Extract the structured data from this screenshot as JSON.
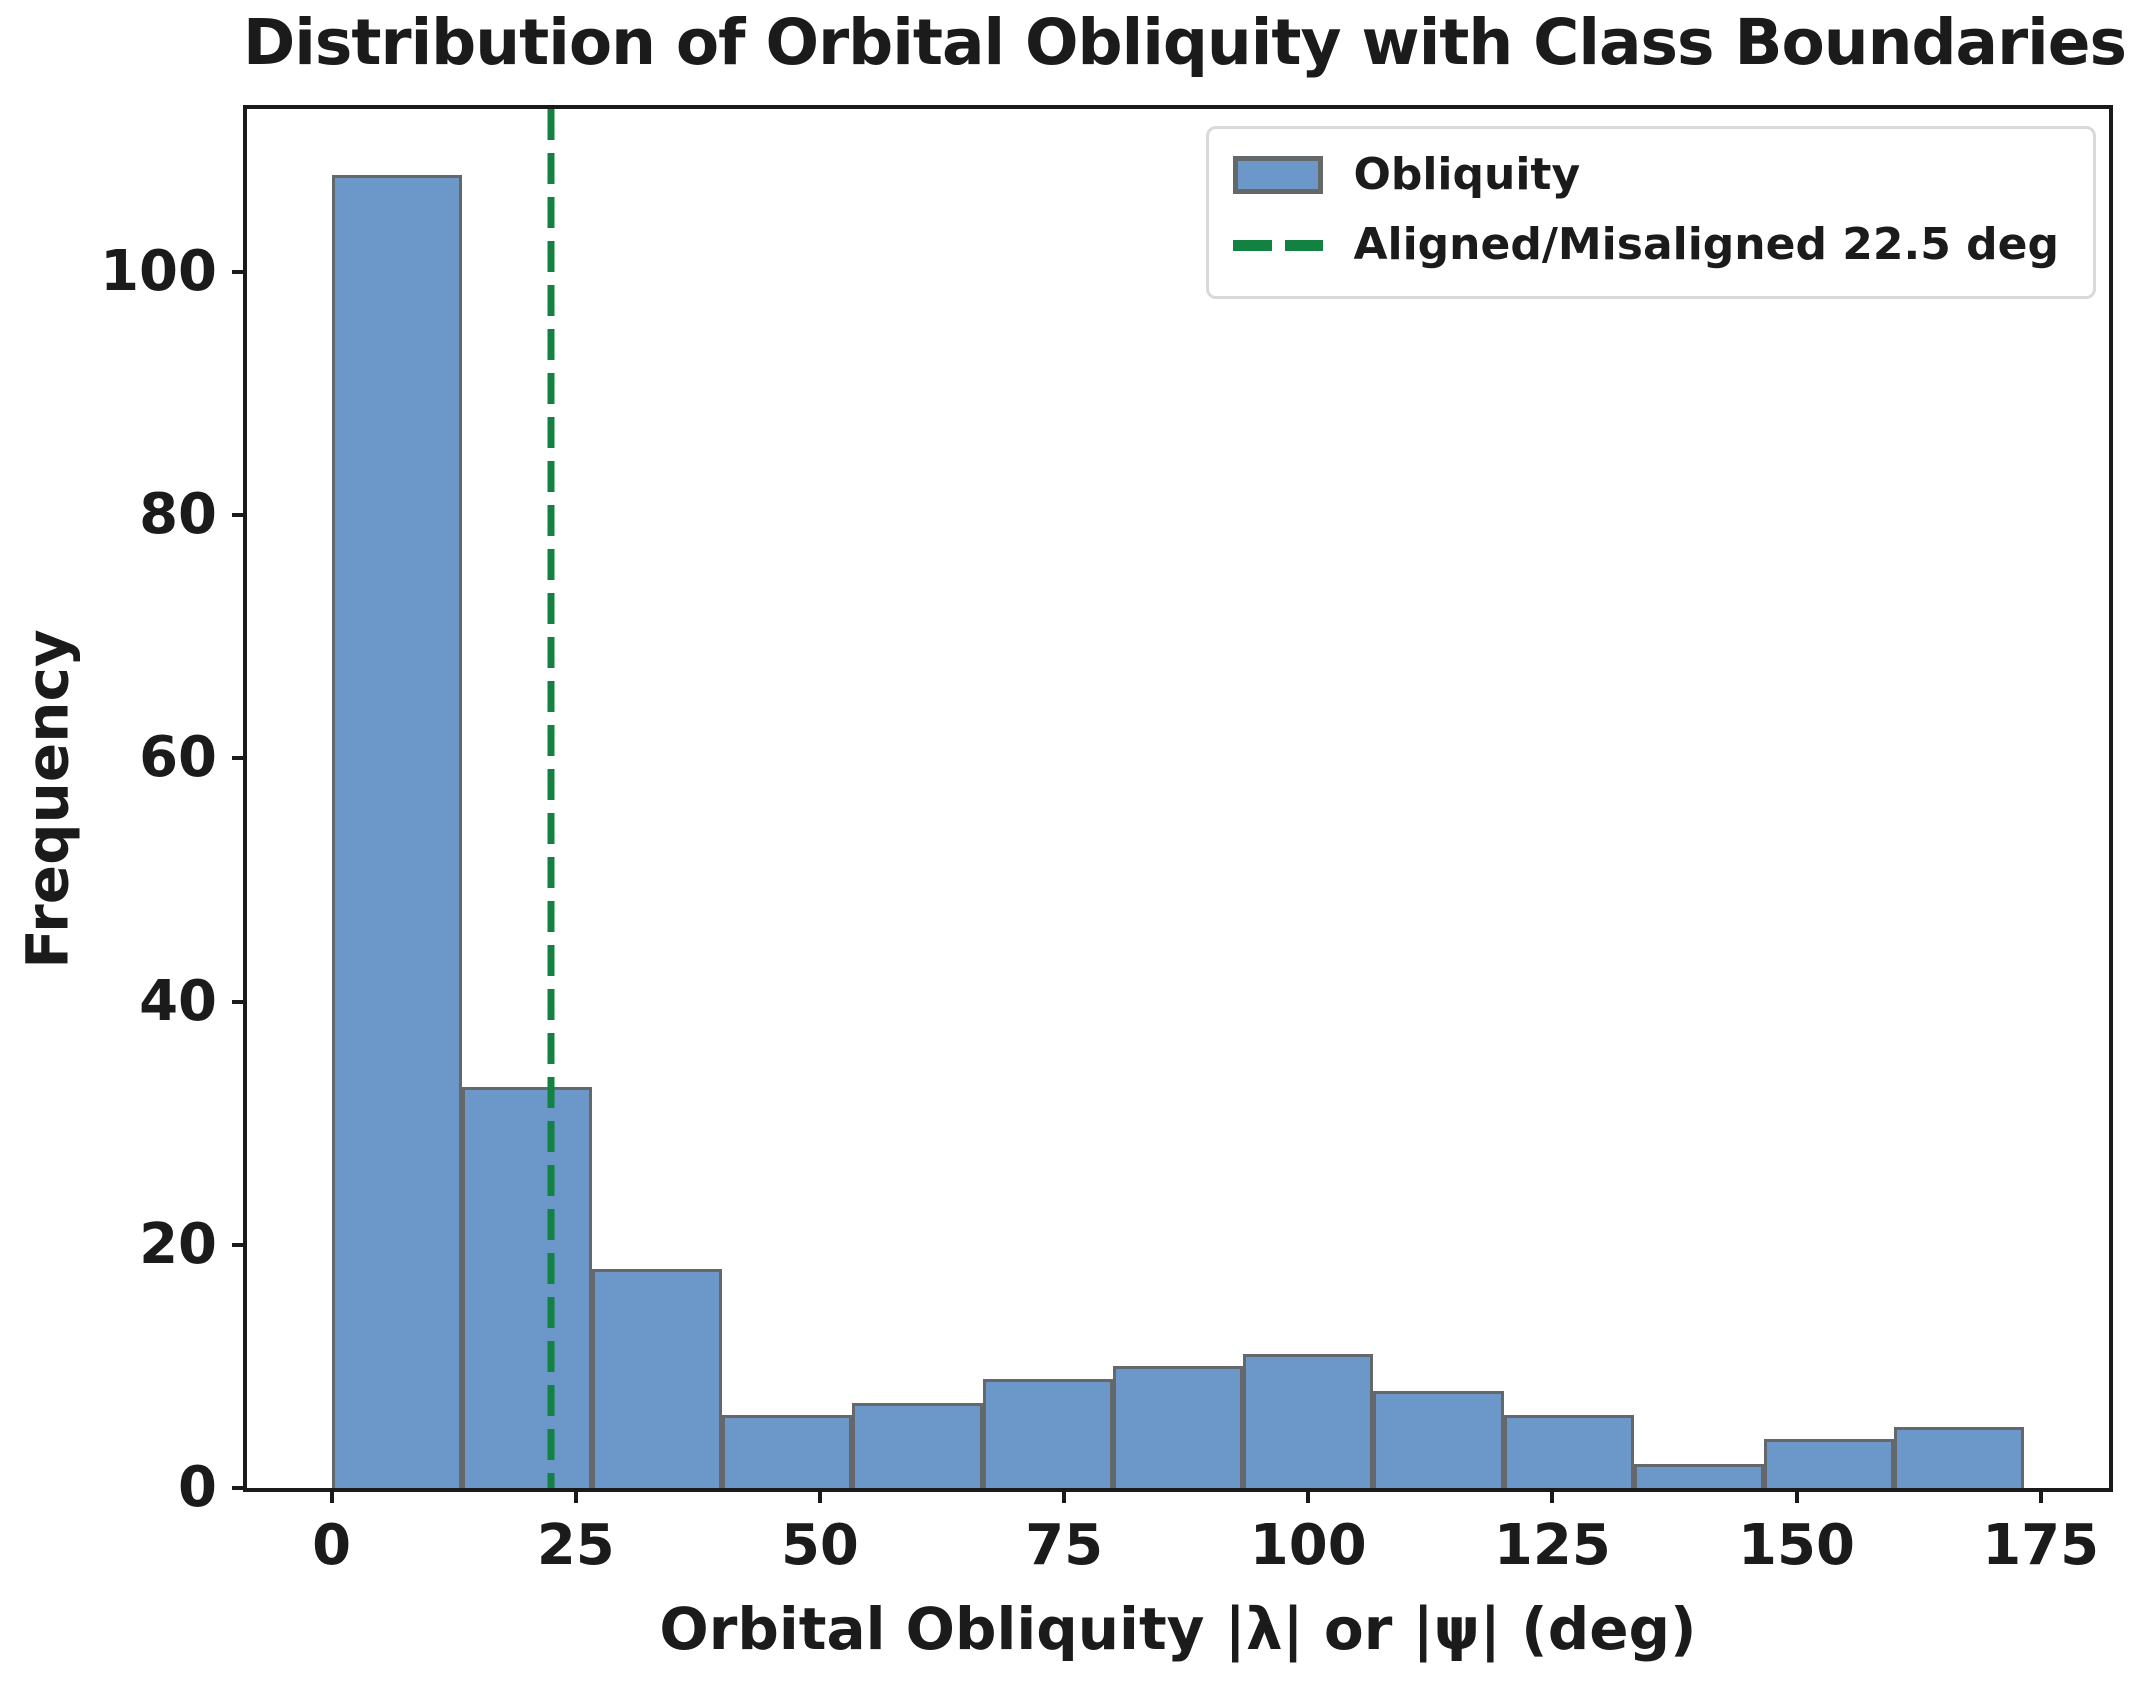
{
  "title": "Distribution of Orbital Obliquity with Class Boundaries",
  "xlabel": "Orbital Obliquity |λ| or |ψ| (deg)",
  "ylabel": "Frequency",
  "legend": {
    "position": "upper right",
    "items": [
      {
        "label": "Obliquity",
        "marker": "patch"
      },
      {
        "label": "Aligned/Misaligned 22.5 deg",
        "marker": "dashed-line"
      }
    ]
  },
  "colors": {
    "bar_fill": "#6C97C9",
    "bar_edge": "#65686B",
    "boundary_line": "#128142",
    "axes_color": "#1a1a1a",
    "legend_border": "#d9d9d9",
    "text_color": "#1b1b1b",
    "figure_bg": "#ffffff"
  },
  "chart_data": {
    "type": "bar",
    "subtype": "histogram",
    "title": "Distribution of Orbital Obliquity with Class Boundaries",
    "xlabel": "Orbital Obliquity |λ| or |ψ| (deg)",
    "ylabel": "Frequency",
    "bin_edges": [
      0,
      13.33,
      26.67,
      40,
      53.33,
      66.67,
      80,
      93.33,
      106.67,
      120,
      133.33,
      146.67,
      160,
      173.33
    ],
    "counts": [
      108,
      33,
      18,
      6,
      7,
      9,
      10,
      11,
      8,
      6,
      2,
      4,
      5
    ],
    "boundary_value": 22.5,
    "boundary_label": "Aligned/Misaligned 22.5 deg",
    "series_label": "Obliquity",
    "xticks": [
      0,
      25,
      50,
      75,
      100,
      125,
      150,
      175
    ],
    "yticks": [
      0,
      20,
      40,
      60,
      80,
      100
    ],
    "xlim": [
      -8.67,
      182.0
    ],
    "ylim": [
      0,
      113.4
    ],
    "grid": false,
    "legend_position": "upper right"
  }
}
